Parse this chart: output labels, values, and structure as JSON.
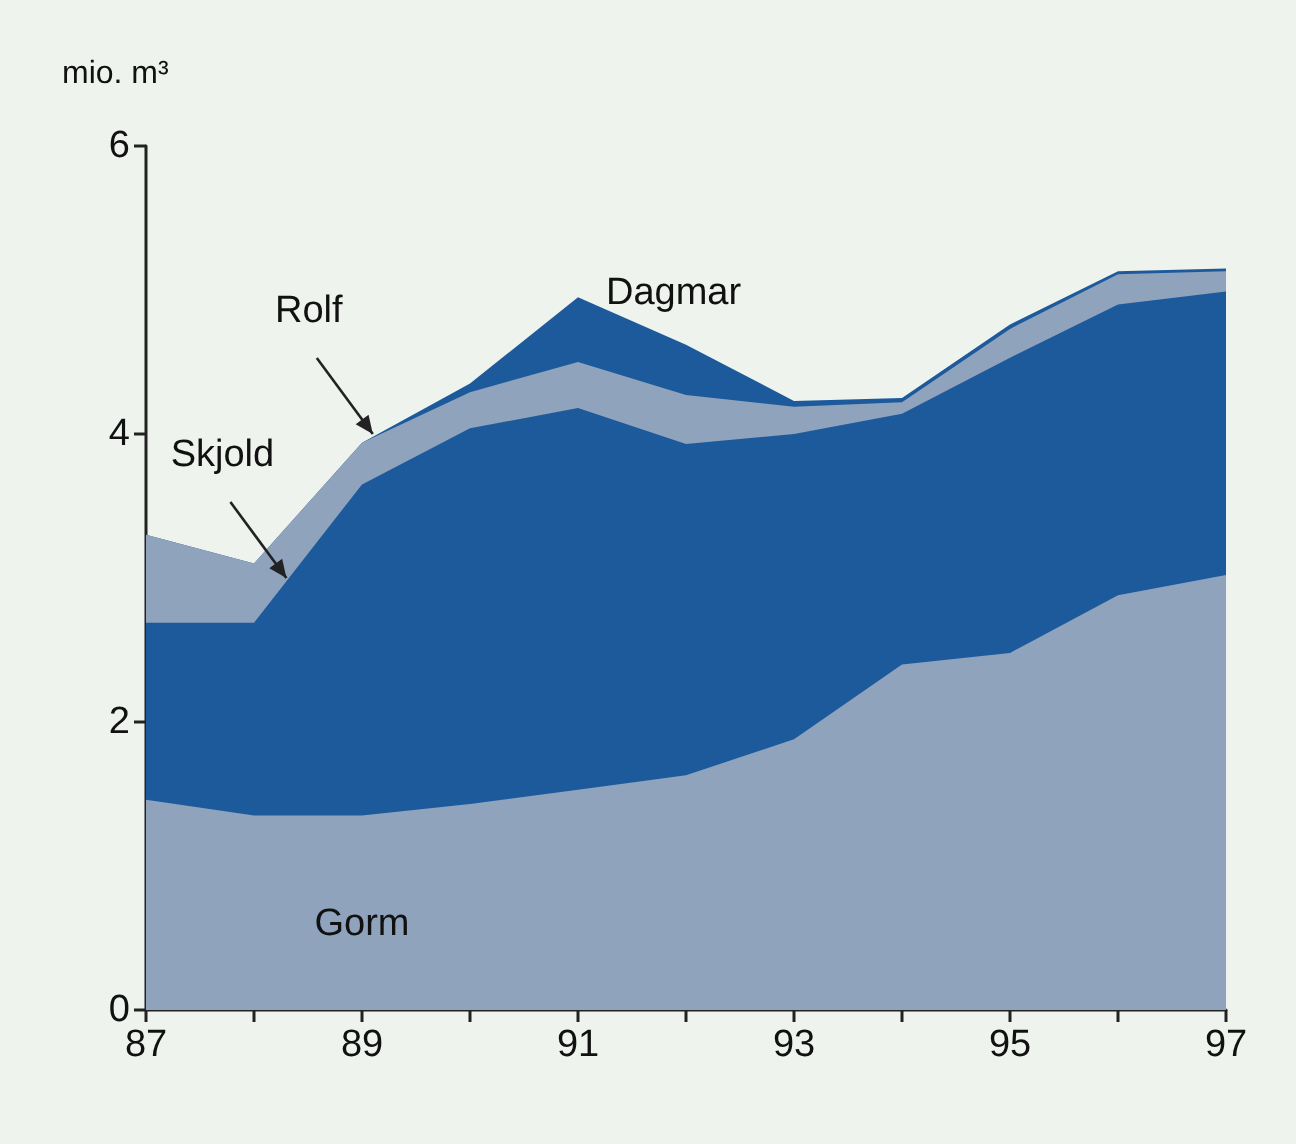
{
  "chart_data": {
    "type": "area",
    "stacked": true,
    "ylabel": "mio. m³",
    "x": [
      87,
      88,
      89,
      90,
      91,
      92,
      93,
      94,
      95,
      96,
      97
    ],
    "series": [
      {
        "color": "#8fa3bd",
        "values": [
          1.46,
          1.35,
          1.35,
          1.43,
          1.53,
          1.63,
          1.88,
          2.4,
          2.48,
          2.88,
          3.02
        ]
      },
      {
        "color": "#1d5a9c",
        "values": [
          1.23,
          1.34,
          2.3,
          2.61,
          2.65,
          2.3,
          2.12,
          1.74,
          2.05,
          2.02,
          1.97
        ]
      },
      {
        "color": "#8fa3bd",
        "values": [
          0.61,
          0.41,
          0.29,
          0.25,
          0.32,
          0.34,
          0.19,
          0.08,
          0.2,
          0.21,
          0.14
        ]
      },
      {
        "color": "#1d5a9c",
        "values": [
          0,
          0,
          0,
          0.06,
          0.45,
          0.35,
          0.04,
          0.03,
          0.03,
          0.02,
          0.02
        ]
      }
    ],
    "annotations": [
      "Gorm",
      {
        "text": "Skjold",
        "x": 88.3,
        "y": 3.0
      },
      {
        "text": "Rolf",
        "x": 89.1,
        "y": 4.0
      },
      {
        "text": "Dagmar",
        "x": 91,
        "y": 4.95
      }
    ],
    "xlim": [
      87,
      97
    ],
    "xticks": [
      87,
      {
        "value": 88,
        "label": null
      },
      89,
      {
        "value": 90,
        "label": null
      },
      91,
      {
        "value": 92,
        "label": null
      },
      93,
      {
        "value": 94,
        "label": null
      },
      95,
      {
        "value": 96,
        "label": null
      },
      97
    ],
    "ylim": [
      0,
      6
    ],
    "yticks": [
      0,
      2,
      4,
      6
    ],
    "grid": false
  }
}
